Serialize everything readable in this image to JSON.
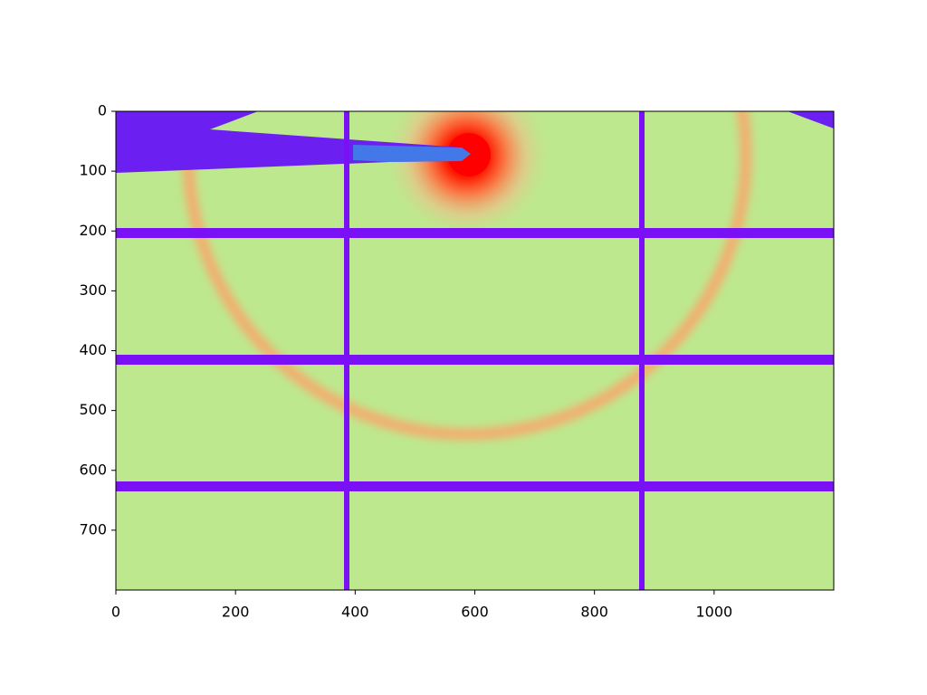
{
  "chart_data": {
    "type": "image",
    "colormap": "rainbow",
    "xlim": [
      0,
      1200
    ],
    "ylim": [
      800,
      0
    ],
    "xticks": [
      0,
      200,
      400,
      600,
      800,
      1000
    ],
    "yticks": [
      0,
      100,
      200,
      300,
      400,
      500,
      600,
      700
    ]
  }
}
